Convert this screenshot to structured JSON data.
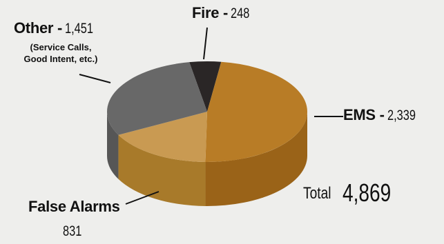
{
  "chart_data": {
    "type": "pie",
    "title": "",
    "slices": [
      {
        "id": "fire",
        "label": "Fire -",
        "value": 248,
        "value_text": "248",
        "color": "#2a2626",
        "side": "#1d1a1a"
      },
      {
        "id": "ems",
        "label": "EMS -",
        "value": 2339,
        "value_text": "2,339",
        "color": "#b87c26",
        "side": "#9a6318"
      },
      {
        "id": "false",
        "label": "False Alarms",
        "value": 831,
        "value_text": "831",
        "color": "#c99a52",
        "side": "#a87a2a"
      },
      {
        "id": "other",
        "label": "Other -",
        "value": 1451,
        "value_text": "1,451",
        "color": "#686868",
        "side": "#565656",
        "note_lines": [
          "(Service Calls,",
          "Good Intent, etc.)"
        ]
      }
    ],
    "total_label": "Total",
    "total_value": "4,869",
    "style": "3d-pie"
  }
}
